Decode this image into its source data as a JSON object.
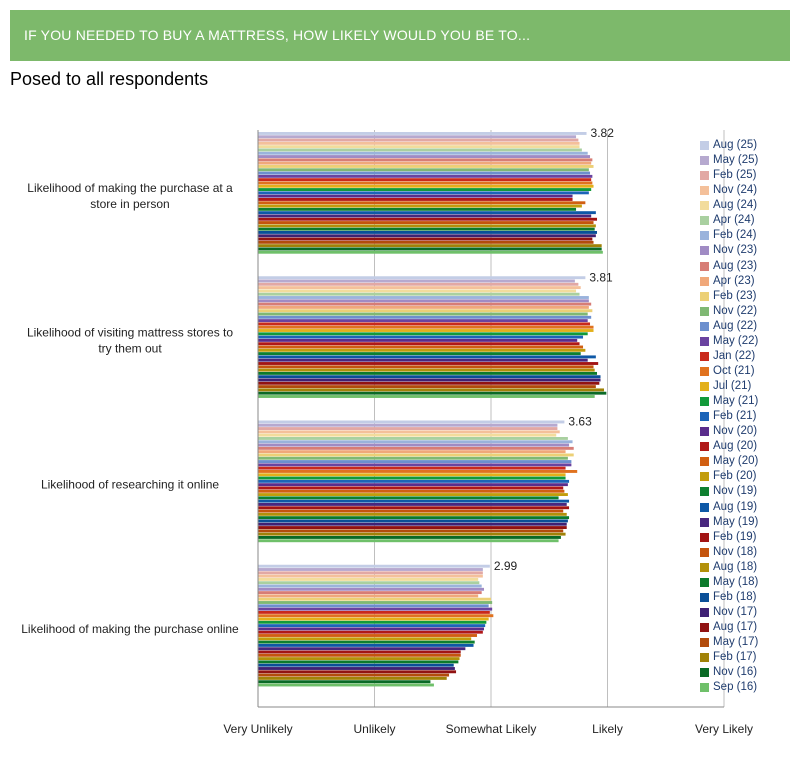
{
  "header": {
    "banner_text": "IF YOU NEEDED TO BUY A MATTRESS, HOW LIKELY WOULD YOU BE TO...",
    "subtitle": "Posed to all respondents",
    "banner_color": "#7db96b"
  },
  "chart_data": {
    "type": "bar",
    "orientation": "horizontal",
    "title": "",
    "xlabel": "",
    "ylabel": "",
    "x_tick_labels": [
      "Very Unlikely",
      "Unlikely",
      "Somewhat Likely",
      "Likely",
      "Very Likely"
    ],
    "xlim": [
      1,
      5
    ],
    "grid": true,
    "legend_position": "right",
    "categories": [
      "Likelihood of making the purchase at a store in person",
      "Likelihood of visiting mattress stores to try them out",
      "Likelihood of researching it online",
      "Likelihood of making the purchase online"
    ],
    "latest_value_labels": [
      "3.82",
      "3.81",
      "3.63",
      "2.99"
    ],
    "series": [
      {
        "name": "Aug (25)",
        "color": "#c3cde6",
        "values": [
          3.82,
          3.81,
          3.63,
          2.99
        ]
      },
      {
        "name": "May (25)",
        "color": "#b6a9cf",
        "values": [
          3.73,
          3.72,
          3.57,
          2.93
        ]
      },
      {
        "name": "Feb (25)",
        "color": "#e2a8a4",
        "values": [
          3.75,
          3.75,
          3.57,
          2.93
        ]
      },
      {
        "name": "Nov (24)",
        "color": "#f4c09a",
        "values": [
          3.76,
          3.77,
          3.59,
          2.93
        ]
      },
      {
        "name": "Aug (24)",
        "color": "#f2dc9c",
        "values": [
          3.76,
          3.73,
          3.56,
          2.89
        ]
      },
      {
        "name": "Apr (24)",
        "color": "#a9d0a0",
        "values": [
          3.78,
          3.76,
          3.66,
          2.9
        ]
      },
      {
        "name": "Feb (24)",
        "color": "#9ab3dc",
        "values": [
          3.83,
          3.84,
          3.7,
          2.92
        ]
      },
      {
        "name": "Nov (23)",
        "color": "#a08bc4",
        "values": [
          3.85,
          3.84,
          3.67,
          2.94
        ]
      },
      {
        "name": "Aug (23)",
        "color": "#d77d76",
        "values": [
          3.87,
          3.86,
          3.71,
          2.92
        ]
      },
      {
        "name": "Apr (23)",
        "color": "#f0a87a",
        "values": [
          3.86,
          3.84,
          3.64,
          2.89
        ]
      },
      {
        "name": "Feb (23)",
        "color": "#ecd076",
        "values": [
          3.88,
          3.87,
          3.71,
          3.0
        ]
      },
      {
        "name": "Nov (22)",
        "color": "#7fb873",
        "values": [
          3.84,
          3.83,
          3.66,
          3.01
        ]
      },
      {
        "name": "Aug (22)",
        "color": "#6c8fce",
        "values": [
          3.85,
          3.86,
          3.69,
          2.98
        ]
      },
      {
        "name": "May (22)",
        "color": "#6a43a0",
        "values": [
          3.87,
          3.83,
          3.69,
          3.01
        ]
      },
      {
        "name": "Jan (22)",
        "color": "#c9291c",
        "values": [
          3.86,
          3.85,
          3.64,
          2.99
        ]
      },
      {
        "name": "Oct (21)",
        "color": "#e0721f",
        "values": [
          3.87,
          3.88,
          3.74,
          3.02
        ]
      },
      {
        "name": "Jul (21)",
        "color": "#e3b01a",
        "values": [
          3.88,
          3.88,
          3.64,
          2.98
        ]
      },
      {
        "name": "May (21)",
        "color": "#129a3a",
        "values": [
          3.86,
          3.83,
          3.64,
          2.96
        ]
      },
      {
        "name": "Feb (21)",
        "color": "#1c64b8",
        "values": [
          3.84,
          3.79,
          3.67,
          2.95
        ]
      },
      {
        "name": "Nov (20)",
        "color": "#5a2d8c",
        "values": [
          3.7,
          3.74,
          3.66,
          2.94
        ]
      },
      {
        "name": "Aug (20)",
        "color": "#b01818",
        "values": [
          3.7,
          3.76,
          3.62,
          2.93
        ]
      },
      {
        "name": "May (20)",
        "color": "#d15f12",
        "values": [
          3.81,
          3.79,
          3.63,
          2.88
        ]
      },
      {
        "name": "Feb (20)",
        "color": "#c29d0c",
        "values": [
          3.78,
          3.81,
          3.66,
          2.83
        ]
      },
      {
        "name": "Nov (19)",
        "color": "#0e8030",
        "values": [
          3.73,
          3.77,
          3.58,
          2.86
        ]
      },
      {
        "name": "Aug (19)",
        "color": "#0e58a6",
        "values": [
          3.9,
          3.9,
          3.67,
          2.85
        ]
      },
      {
        "name": "May (19)",
        "color": "#48277e",
        "values": [
          3.86,
          3.83,
          3.65,
          2.78
        ]
      },
      {
        "name": "Feb (19)",
        "color": "#a21414",
        "values": [
          3.91,
          3.92,
          3.67,
          2.74
        ]
      },
      {
        "name": "Nov (18)",
        "color": "#c4540e",
        "values": [
          3.88,
          3.88,
          3.62,
          2.74
        ]
      },
      {
        "name": "Aug (18)",
        "color": "#b2900a",
        "values": [
          3.9,
          3.89,
          3.65,
          2.73
        ]
      },
      {
        "name": "May (18)",
        "color": "#0c7a2c",
        "values": [
          3.89,
          3.91,
          3.67,
          2.72
        ]
      },
      {
        "name": "Feb (18)",
        "color": "#0a4f98",
        "values": [
          3.91,
          3.94,
          3.66,
          2.68
        ]
      },
      {
        "name": "Nov (17)",
        "color": "#3f2174",
        "values": [
          3.9,
          3.94,
          3.65,
          2.69
        ]
      },
      {
        "name": "Aug (17)",
        "color": "#911212",
        "values": [
          3.87,
          3.93,
          3.65,
          2.7
        ]
      },
      {
        "name": "May (17)",
        "color": "#b24c0c",
        "values": [
          3.88,
          3.9,
          3.62,
          2.64
        ]
      },
      {
        "name": "Feb (17)",
        "color": "#a08208",
        "values": [
          3.95,
          3.97,
          3.64,
          2.62
        ]
      },
      {
        "name": "Nov (16)",
        "color": "#0a6a26",
        "values": [
          3.95,
          3.99,
          3.6,
          2.48
        ]
      },
      {
        "name": "Sep (16)",
        "color": "#6fc06a",
        "values": [
          3.96,
          3.89,
          3.58,
          2.51
        ]
      }
    ]
  }
}
